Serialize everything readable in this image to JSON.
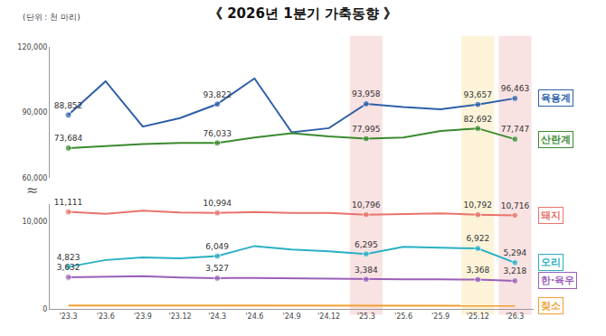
{
  "chart_data": {
    "type": "line",
    "title": "《 2026년 1분기 가축동향 》",
    "subtitle": "(단위 : 천 마리)",
    "axis_break": "≈",
    "categories": [
      "'23.3",
      "'23.6",
      "'23.9",
      "'23.12",
      "'24.3",
      "'24.6",
      "'24.9",
      "'24.12",
      "'25.3",
      "'25.6",
      "'25.9",
      "'25.12",
      "'26.3"
    ],
    "ylim": [
      0,
      12000
    ],
    "yticks": [
      0,
      {
        "value": 10000,
        "label": "10,000"
      }
    ],
    "y2lim": [
      60000,
      120000
    ],
    "y2ticks": [
      {
        "value": 60000,
        "label": "60,000"
      },
      {
        "value": 90000,
        "label": "90,000"
      },
      {
        "value": 120000,
        "label": "120,000"
      }
    ],
    "grid": false,
    "data_labels": true,
    "highlights": [
      {
        "category": "'25.3",
        "color": "#e06666"
      },
      {
        "category": "'25.12",
        "color": "#f1c232"
      },
      {
        "category": "'26.3",
        "color": "#e06666"
      }
    ],
    "series": [
      {
        "name": "육용계",
        "color": "#2e5fa8",
        "axis": "y2",
        "values": [
          88852,
          104300,
          83500,
          87400,
          93822,
          105600,
          80900,
          82800,
          93958,
          92500,
          91500,
          93657,
          96463
        ],
        "value_labels": [
          "88,852",
          null,
          null,
          null,
          "93,822",
          null,
          null,
          null,
          "93,958",
          null,
          null,
          "93,657",
          "96,463"
        ]
      },
      {
        "name": "산란계",
        "color": "#3a8a2e",
        "axis": "y2",
        "values": [
          73684,
          74500,
          75500,
          76000,
          76033,
          78500,
          80500,
          79000,
          77995,
          78500,
          81500,
          82692,
          77747
        ],
        "value_labels": [
          "73,684",
          null,
          null,
          null,
          "76,033",
          null,
          null,
          null,
          "77,995",
          null,
          null,
          "82,692",
          "77,747"
        ]
      },
      {
        "name": "돼지",
        "color": "#e8736b",
        "values": [
          11111,
          10900,
          11250,
          11050,
          10994,
          11100,
          11000,
          11000,
          10796,
          10850,
          10950,
          10792,
          10716
        ],
        "value_labels": [
          "11,111",
          null,
          null,
          null,
          "10,994",
          null,
          null,
          null,
          "10,796",
          null,
          null,
          "10,792",
          "10,716"
        ]
      },
      {
        "name": "오리",
        "color": "#2ab0c4",
        "values": [
          4823,
          5600,
          5900,
          5800,
          6049,
          7200,
          6800,
          6600,
          6295,
          7100,
          7000,
          6922,
          5294
        ],
        "value_labels": [
          "4,823",
          null,
          null,
          null,
          "6,049",
          null,
          null,
          null,
          "6,295",
          null,
          null,
          "6,922",
          "5,294"
        ]
      },
      {
        "name": "한·육우",
        "color": "#9a5fb8",
        "values": [
          3632,
          3700,
          3750,
          3600,
          3527,
          3550,
          3500,
          3450,
          3384,
          3400,
          3380,
          3368,
          3218
        ],
        "value_labels": [
          "3,632",
          null,
          null,
          null,
          "3,527",
          null,
          null,
          null,
          "3,384",
          null,
          null,
          "3,368",
          "3,218"
        ]
      },
      {
        "name": "젖소",
        "color": "#f0a030",
        "values": [
          385,
          390,
          388,
          384,
          382,
          380,
          379,
          378,
          377,
          376,
          376,
          375,
          371
        ]
      }
    ]
  }
}
